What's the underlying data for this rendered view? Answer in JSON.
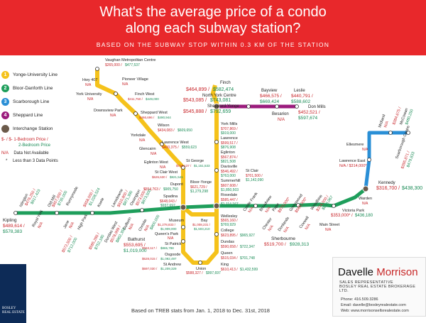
{
  "header": {
    "title_line1": "What's the average price of a condo",
    "title_line2": "along each subway station?",
    "subtitle": "BASED ON THE SUBWAY STOP WITHIN 0.3 KM OF THE STATION"
  },
  "legend": {
    "yonge": "Yonge-University Line",
    "bloor": "Bloor-Danforth Line",
    "scarborough": "Scarborough Line",
    "sheppard": "Sheppard Line",
    "interchange": "Interchange Station",
    "price_mark": "$- / $-",
    "one_bed": "1-Bedroom Price /",
    "two_bed": "2-Bedroom Price",
    "na_mark": "N/A",
    "na_text": "Data Not Available",
    "star_mark": "*",
    "star_text": "Less than 3 Data Points",
    "line_numbers": [
      "1",
      "2",
      "3",
      "4"
    ]
  },
  "stations": {
    "vaughan": {
      "name": "Vaughan Metropolitan Centre",
      "p1": "$265,000 /",
      "p2": "$477,537"
    },
    "hwy407": {
      "name": "Hwy 407",
      "p1": "N/A"
    },
    "pioneer": {
      "name": "Pioneer Village",
      "p1": "N/A"
    },
    "york_u": {
      "name": "York University",
      "p1": "N/A"
    },
    "finch_west": {
      "name": "Finch West",
      "p1": "$411,750 /",
      "p2": "$449,000"
    },
    "downsview": {
      "name": "Downsview Park",
      "p1": "N/A"
    },
    "sheppard_west": {
      "name": "Sheppard West",
      "p1": "$466,696 /",
      "p2": "$490,944"
    },
    "wilson": {
      "name": "Wilson",
      "p1": "$434,083 /",
      "p2": "$609,650"
    },
    "yorkdale": {
      "name": "Yorkdale",
      "p1": "N/A"
    },
    "lawrence_west": {
      "name": "Lawrence West",
      "p1": "$400,375 /",
      "p2": "$559,623"
    },
    "glencairn": {
      "name": "Glencairn",
      "p1": "N/A"
    },
    "eglinton_west": {
      "name": "Eglinton West",
      "p1": "N/A"
    },
    "st_clair_west": {
      "name": "St Clair West",
      "p1": "$626,630 /",
      "p2": "$821,541"
    },
    "dupont": {
      "name": "Dupont",
      "p1": "$554,763 /",
      "p2": "$905,750"
    },
    "spadina": {
      "name": "Spadina",
      "p1": "$648,043 /",
      "p2": "$937,697"
    },
    "st_george": {
      "name": "St George",
      "p1": "$728,137 /",
      "p2": "$1,151,533"
    },
    "finch": {
      "name": "Finch",
      "p1": "$464,899 /",
      "p2": "$582,474"
    },
    "north_york": {
      "name": "North York Centre",
      "p1": "$543,085 /",
      "p2": "$743,081"
    },
    "sheppard_yonge": {
      "name": "Sheppard-Yonge",
      "p1": "$545,888 /",
      "p2": "$792,659"
    },
    "york_mills": {
      "name": "York Mills",
      "p1": "$707,869 /",
      "p2": "$919,000"
    },
    "lawrence": {
      "name": "Lawrence",
      "p1": "$599,517 /",
      "p2": "$876,908"
    },
    "eglinton": {
      "name": "Eglinton",
      "p1": "$567,874 /",
      "p2": "$821,508"
    },
    "davisville": {
      "name": "Davisville",
      "p1": "$546,492 /",
      "p2": "$763,000"
    },
    "st_clair": {
      "name": "St Clair",
      "p1": "$701,500 /",
      "p2": "$1,142,090"
    },
    "summerhill": {
      "name": "Summerhill",
      "p1": "$607,608 /",
      "p2": "$1,850,503"
    },
    "rosedale": {
      "name": "Rosedale",
      "p1": "$585,447 /",
      "p2": "$1,114,167"
    },
    "bloor_yonge": {
      "name": "Bloor-Yonge",
      "p1": "$621,729 /",
      "p2": "$1,279,298"
    },
    "wellesley": {
      "name": "Wellesley",
      "p1": "$565,160 /",
      "p2": "$769,929"
    },
    "college": {
      "name": "College",
      "p1": "$623,895 /",
      "p2": "$965,927"
    },
    "dundas": {
      "name": "Dundas",
      "p1": "$590,658 /",
      "p2": "$722,347"
    },
    "queen": {
      "name": "Queen",
      "p1": "$515,034 /",
      "p2": "$701,748"
    },
    "king": {
      "name": "King",
      "p1": "$610,413 /",
      "p2": "$1,432,599"
    },
    "union": {
      "name": "Union",
      "p1": "$588,327 /",
      "p2": "$997,697"
    },
    "bay": {
      "name": "Bay",
      "p1": "$1,008,231 /",
      "p2": "$1,503,210"
    },
    "museum": {
      "name": "Museum",
      "p1": "$1,278,833 /",
      "p2": "$1,909,000"
    },
    "queens_park": {
      "name": "Queen's Park",
      "p1": "N/A"
    },
    "st_patrick": {
      "name": "St Patrick",
      "p1": "$553,117 /",
      "p2": "$865,788"
    },
    "osgoode": {
      "name": "Osgoode",
      "p1": "$628,015 /",
      "p2": "$1,092,497"
    },
    "st_andrew": {
      "name": "St Andrew",
      "p1": "$697,030 /",
      "p2": "$1,209,329"
    },
    "bathurst": {
      "name": "Bathurst",
      "p1": "$553,695 /",
      "p2": "$1,019,000"
    },
    "kipling": {
      "name": "Kipling",
      "p1": "$489,614 /",
      "p2": "$578,383"
    },
    "islington": {
      "name": "Islington",
      "p1": "$476,250 /",
      "p2": "$617,423"
    },
    "royal_york": {
      "name": "Royal York",
      "p1": "N/A"
    },
    "old_mill": {
      "name": "Old Mill",
      "p1": "$607,000 /",
      "p2": "$735,000"
    },
    "jane": {
      "name": "Jane",
      "p1": "N/A"
    },
    "runnymede": {
      "name": "Runnymede",
      "p1": "$572,500 /",
      "p2": "$712,000"
    },
    "high_park": {
      "name": "High Park",
      "p1": "$658,000 /",
      "p2": "$1,028,524"
    },
    "keele": {
      "name": "Keele",
      "p1": "$585,286 /",
      "p2": "$752,180"
    },
    "dundas_west": {
      "name": "Dundas West",
      "p1": "$578,999 /",
      "p2": "$862,350"
    },
    "lansdowne": {
      "name": "Lansdowne",
      "p1": "$610,800 /",
      "p2": "$871,390"
    },
    "dufferin": {
      "name": "Dufferin",
      "p1": "N/A"
    },
    "ossington": {
      "name": "Ossington",
      "p1": "$573,000 /",
      "p2": "$873,500"
    },
    "christie": {
      "name": "Christie",
      "p1": "N/A",
      "p2": "$800,000"
    },
    "sherbourne": {
      "name": "Sherbourne",
      "p1": "$519,700 /",
      "p2": "$928,313"
    },
    "castle_frank": {
      "name": "Castle Frank",
      "p1": "N/A"
    },
    "broadview": {
      "name": "Broadview",
      "p1": "N/A"
    },
    "chester": {
      "name": "Chester",
      "p1": "N/A"
    },
    "pape": {
      "name": "Pape",
      "p1": "$973,000*"
    },
    "donlands": {
      "name": "Donlands",
      "p1": "N/A"
    },
    "greenwood": {
      "name": "Greenwood",
      "p1": "$565,000*"
    },
    "coxwell": {
      "name": "Coxwell",
      "p1": "N/A"
    },
    "woodbine": {
      "name": "Woodbine",
      "p1": "$374,000 /",
      "p2": "$618,067"
    },
    "main_street": {
      "name": "Main Street",
      "p1": "N/A"
    },
    "victoria_park": {
      "name": "Victoria Park",
      "p1": "$353,000* /",
      "p2": "$436,180"
    },
    "warden": {
      "name": "Warden",
      "p1": "N/A"
    },
    "kennedy": {
      "name": "Kennedy",
      "p1": "$316,700 /",
      "p2": "$438,300"
    },
    "lawrence_east": {
      "name": "Lawrence East",
      "p1": "N/A / $314,000*"
    },
    "ellesmere": {
      "name": "Ellesmere",
      "p1": "N/A"
    },
    "midland": {
      "name": "Midland",
      "p1": "N/A"
    },
    "scarborough_centre": {
      "name": "Scarborough Centre",
      "p1": "$395,871 /",
      "p2": "$479,833"
    },
    "mccowan": {
      "name": "McCowan",
      "p1": "$384,675 /",
      "p2": "$480,250"
    },
    "bayview": {
      "name": "Bayview",
      "p1": "$466,575 /",
      "p2": "$669,424"
    },
    "bessarion": {
      "name": "Besarion",
      "p1": "N/A"
    },
    "leslie": {
      "name": "Leslie",
      "p1": "$440,791 /",
      "p2": "$588,602"
    },
    "don_mills": {
      "name": "Don Mills",
      "p1": "$452,521 /",
      "p2": "$597,674"
    }
  },
  "colors": {
    "header": "#e8282b",
    "yonge": "#f5c21b",
    "bloor": "#1e9e5b",
    "scarborough": "#2a8fd6",
    "sheppard": "#9b1b7d",
    "price1": "#c8252a",
    "price2": "#178a54"
  },
  "brand": {
    "name": "BOSLEY",
    "sub": "REAL ESTATE"
  },
  "agent": {
    "first": "Davelle",
    "last": "Morrison",
    "title1": "SALES REPRESENTATIVE",
    "title2": "BOSLEY REAL ESTATE BROKERAGE LTD.",
    "phone": "Phone: 416.509.3286",
    "email": "Email: davelle@bosleyrealestate.com",
    "web": "Web: www.morrisonsellsrealestate.com"
  },
  "source": "Based on TREB stats from Jan. 1, 2018 to Dec. 31st, 2018"
}
